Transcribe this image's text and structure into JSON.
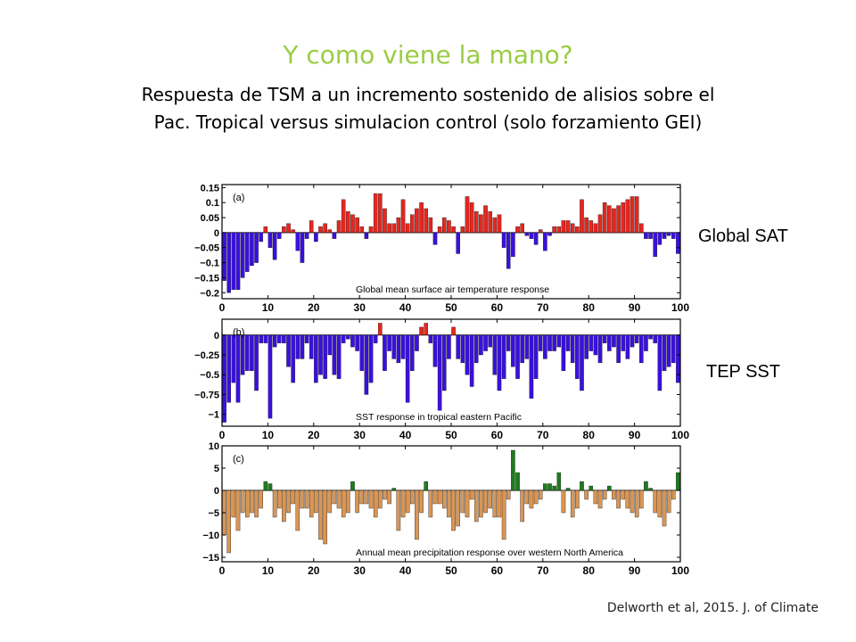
{
  "title": "Y como viene la mano?",
  "subtitle_lines": [
    "Respuesta de TSM a un incremento sostenido de alisios sobre el",
    "Pac. Tropical versus simulacion control (solo forzamiento GEI)"
  ],
  "side_labels": {
    "sat": "Global SAT",
    "sst": "TEP SST"
  },
  "citation": "Delworth et al, 2015. J. of Climate",
  "chart_data": [
    {
      "type": "bar",
      "panel": "(a)",
      "title": "Global mean surface air temperature response",
      "xlim": [
        0,
        100
      ],
      "ylim": [
        -0.22,
        0.16
      ],
      "xticks": [
        0,
        10,
        20,
        30,
        40,
        50,
        60,
        70,
        80,
        90,
        100
      ],
      "yticks": [
        0.15,
        0.1,
        0.05,
        0,
        -0.05,
        -0.1,
        -0.15,
        -0.2
      ],
      "ytick_labels": [
        "0.15",
        "0.1",
        "0.05",
        "0",
        "−0.05",
        "−0.1",
        "−0.15",
        "−0.2"
      ],
      "positive_color": "#e8261f",
      "negative_color": "#3a10e0",
      "x": [
        1,
        2,
        3,
        4,
        5,
        6,
        7,
        8,
        9,
        10,
        11,
        12,
        13,
        14,
        15,
        16,
        17,
        18,
        19,
        20,
        21,
        22,
        23,
        24,
        25,
        26,
        27,
        28,
        29,
        30,
        31,
        32,
        33,
        34,
        35,
        36,
        37,
        38,
        39,
        40,
        41,
        42,
        43,
        44,
        45,
        46,
        47,
        48,
        49,
        50,
        51,
        52,
        53,
        54,
        55,
        56,
        57,
        58,
        59,
        60,
        61,
        62,
        63,
        64,
        65,
        66,
        67,
        68,
        69,
        70,
        71,
        72,
        73,
        74,
        75,
        76,
        77,
        78,
        79,
        80,
        81,
        82,
        83,
        84,
        85,
        86,
        87,
        88,
        89,
        90,
        91,
        92,
        93,
        94,
        95,
        96,
        97,
        98,
        99,
        100
      ],
      "values": [
        -0.16,
        -0.2,
        -0.19,
        -0.19,
        -0.15,
        -0.13,
        -0.11,
        -0.1,
        -0.03,
        0.02,
        -0.05,
        -0.09,
        -0.02,
        0.02,
        0.03,
        0.01,
        -0.06,
        -0.1,
        -0.02,
        0.04,
        -0.03,
        0.02,
        0.03,
        0.01,
        -0.02,
        0.04,
        0.11,
        0.07,
        0.06,
        0.05,
        0.02,
        -0.02,
        0.02,
        0.13,
        0.13,
        0.08,
        0.03,
        0.03,
        0.05,
        0.11,
        0.03,
        0.06,
        0.08,
        0.1,
        0.08,
        0.05,
        -0.04,
        0.02,
        0.05,
        0.04,
        0.02,
        -0.07,
        0.02,
        0.12,
        0.1,
        0.07,
        0.06,
        0.09,
        0.07,
        0.05,
        0.06,
        -0.05,
        -0.12,
        -0.08,
        0.02,
        0.03,
        -0.01,
        -0.02,
        -0.04,
        0.01,
        -0.06,
        -0.01,
        0.02,
        0.02,
        0.04,
        0.04,
        0.03,
        0.02,
        0.11,
        0.05,
        0.04,
        0.03,
        0.06,
        0.1,
        0.09,
        0.08,
        0.09,
        0.1,
        0.11,
        0.12,
        0.12,
        0.03,
        -0.02,
        -0.02,
        -0.08,
        -0.04,
        -0.02,
        -0.01,
        -0.02,
        -0.07
      ]
    },
    {
      "type": "bar",
      "panel": "(b)",
      "title": "SST response in tropical eastern Pacific",
      "xlim": [
        0,
        100
      ],
      "ylim": [
        -1.15,
        0.2
      ],
      "xticks": [
        0,
        10,
        20,
        30,
        40,
        50,
        60,
        70,
        80,
        90,
        100
      ],
      "yticks": [
        0,
        -0.25,
        -0.5,
        -0.75,
        -1
      ],
      "ytick_labels": [
        "0",
        "−0.25",
        "−0.5",
        "−0.75",
        "−1"
      ],
      "positive_color": "#e8261f",
      "negative_color": "#3a10e0",
      "x": [
        1,
        2,
        3,
        4,
        5,
        6,
        7,
        8,
        9,
        10,
        11,
        12,
        13,
        14,
        15,
        16,
        17,
        18,
        19,
        20,
        21,
        22,
        23,
        24,
        25,
        26,
        27,
        28,
        29,
        30,
        31,
        32,
        33,
        34,
        35,
        36,
        37,
        38,
        39,
        40,
        41,
        42,
        43,
        44,
        45,
        46,
        47,
        48,
        49,
        50,
        51,
        52,
        53,
        54,
        55,
        56,
        57,
        58,
        59,
        60,
        61,
        62,
        63,
        64,
        65,
        66,
        67,
        68,
        69,
        70,
        71,
        72,
        73,
        74,
        75,
        76,
        77,
        78,
        79,
        80,
        81,
        82,
        83,
        84,
        85,
        86,
        87,
        88,
        89,
        90,
        91,
        92,
        93,
        94,
        95,
        96,
        97,
        98,
        99,
        100
      ],
      "values": [
        -1.1,
        -0.85,
        -0.6,
        -0.85,
        -0.5,
        -0.45,
        -0.45,
        -0.7,
        -0.1,
        -0.1,
        -1.05,
        -0.15,
        -0.1,
        -0.1,
        -0.4,
        -0.6,
        -0.3,
        -0.3,
        -0.1,
        -0.3,
        -0.6,
        -0.5,
        -0.55,
        -0.25,
        -0.5,
        -0.55,
        -0.1,
        -0.05,
        -0.15,
        -0.2,
        -0.45,
        -0.75,
        -0.6,
        -0.1,
        0.15,
        -0.45,
        -0.2,
        -0.3,
        -0.35,
        -0.3,
        -0.85,
        -0.45,
        -0.2,
        0.1,
        0.15,
        -0.1,
        -0.4,
        -0.95,
        -0.7,
        -0.3,
        0.1,
        -0.3,
        -0.35,
        -0.5,
        -0.65,
        -0.35,
        -0.25,
        -0.2,
        -0.15,
        -0.5,
        -0.7,
        -0.55,
        -0.2,
        -0.4,
        -0.55,
        -0.35,
        -0.3,
        -0.8,
        -0.55,
        -0.2,
        -0.3,
        -0.2,
        -0.2,
        -0.15,
        -0.45,
        -0.2,
        -0.35,
        -0.55,
        -0.7,
        -0.3,
        -0.2,
        -0.25,
        -0.35,
        -0.1,
        -0.2,
        -0.15,
        -0.35,
        -0.2,
        -0.3,
        -0.15,
        -0.1,
        -0.35,
        -0.2,
        -0.05,
        -0.1,
        -0.7,
        -0.45,
        -0.4,
        -0.35,
        -0.6
      ]
    },
    {
      "type": "bar",
      "panel": "(c)",
      "title": "Annual mean precipitation response over western North America",
      "xlim": [
        0,
        100
      ],
      "ylim": [
        -16,
        10
      ],
      "xticks": [
        0,
        10,
        20,
        30,
        40,
        50,
        60,
        70,
        80,
        90,
        100
      ],
      "yticks": [
        10,
        5,
        0,
        -5,
        -10,
        -15
      ],
      "ytick_labels": [
        "10",
        "5",
        "0",
        "−5",
        "−10",
        "−15"
      ],
      "positive_color": "#1e7b1e",
      "negative_color": "#d99655",
      "x": [
        1,
        2,
        3,
        4,
        5,
        6,
        7,
        8,
        9,
        10,
        11,
        12,
        13,
        14,
        15,
        16,
        17,
        18,
        19,
        20,
        21,
        22,
        23,
        24,
        25,
        26,
        27,
        28,
        29,
        30,
        31,
        32,
        33,
        34,
        35,
        36,
        37,
        38,
        39,
        40,
        41,
        42,
        43,
        44,
        45,
        46,
        47,
        48,
        49,
        50,
        51,
        52,
        53,
        54,
        55,
        56,
        57,
        58,
        59,
        60,
        61,
        62,
        63,
        64,
        65,
        66,
        67,
        68,
        69,
        70,
        71,
        72,
        73,
        74,
        75,
        76,
        77,
        78,
        79,
        80,
        81,
        82,
        83,
        84,
        85,
        86,
        87,
        88,
        89,
        90,
        91,
        92,
        93,
        94,
        95,
        96,
        97,
        98,
        99,
        100
      ],
      "values": [
        -10,
        -14,
        -6,
        -9,
        -5,
        -6,
        -5,
        -6,
        -4,
        2,
        1.5,
        -6,
        -4,
        -7,
        -5,
        -3,
        -9,
        -4,
        -4,
        -6,
        -5,
        -11,
        -12,
        -5,
        -3,
        -4,
        -6,
        -5,
        2,
        -5,
        -3,
        -3,
        -4,
        -6,
        -4,
        -2,
        -3,
        0.5,
        -9,
        -6,
        -5,
        -3,
        -11,
        -5,
        2,
        -6,
        -3,
        -3,
        -4,
        -6,
        -9,
        -8,
        -5,
        -6,
        -2,
        -7,
        -6,
        -5,
        -4,
        -6,
        -6,
        -11,
        -2,
        9,
        4,
        -7,
        -3,
        -4,
        -3,
        -2,
        1.5,
        1.5,
        1,
        4,
        -5,
        0.5,
        -6,
        -4,
        2,
        -2,
        1,
        -3,
        -4,
        -2,
        1,
        -2,
        -4,
        -2,
        -4,
        -5,
        -6,
        -4,
        2,
        0.5,
        -5,
        -6,
        -8,
        -5,
        -2,
        4
      ]
    }
  ]
}
